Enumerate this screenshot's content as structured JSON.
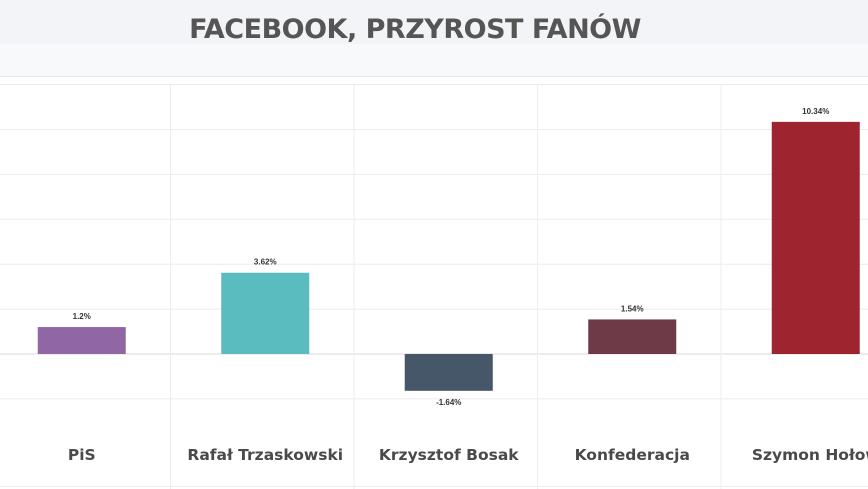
{
  "chart_data": {
    "type": "bar",
    "title": "FACEBOOK, PRZYROST FANÓW",
    "categories": [
      "PiS",
      "Rafał Trzaskowski",
      "Krzysztof Bosak",
      "Konfederacja",
      "Szymon Hołow"
    ],
    "series": [
      {
        "values": [
          1.2,
          3.62,
          -1.64,
          1.54,
          10.34
        ],
        "data_labels": [
          "1.2%",
          "3.62%",
          "-1.64%",
          "1.54%",
          "10.34%"
        ],
        "colors": [
          "#9166a4",
          "#5bbcc0",
          "#465769",
          "#6e3a47",
          "#9e2530"
        ]
      }
    ],
    "ylim": [
      -4,
      12
    ],
    "grid": true,
    "legend": "none"
  }
}
